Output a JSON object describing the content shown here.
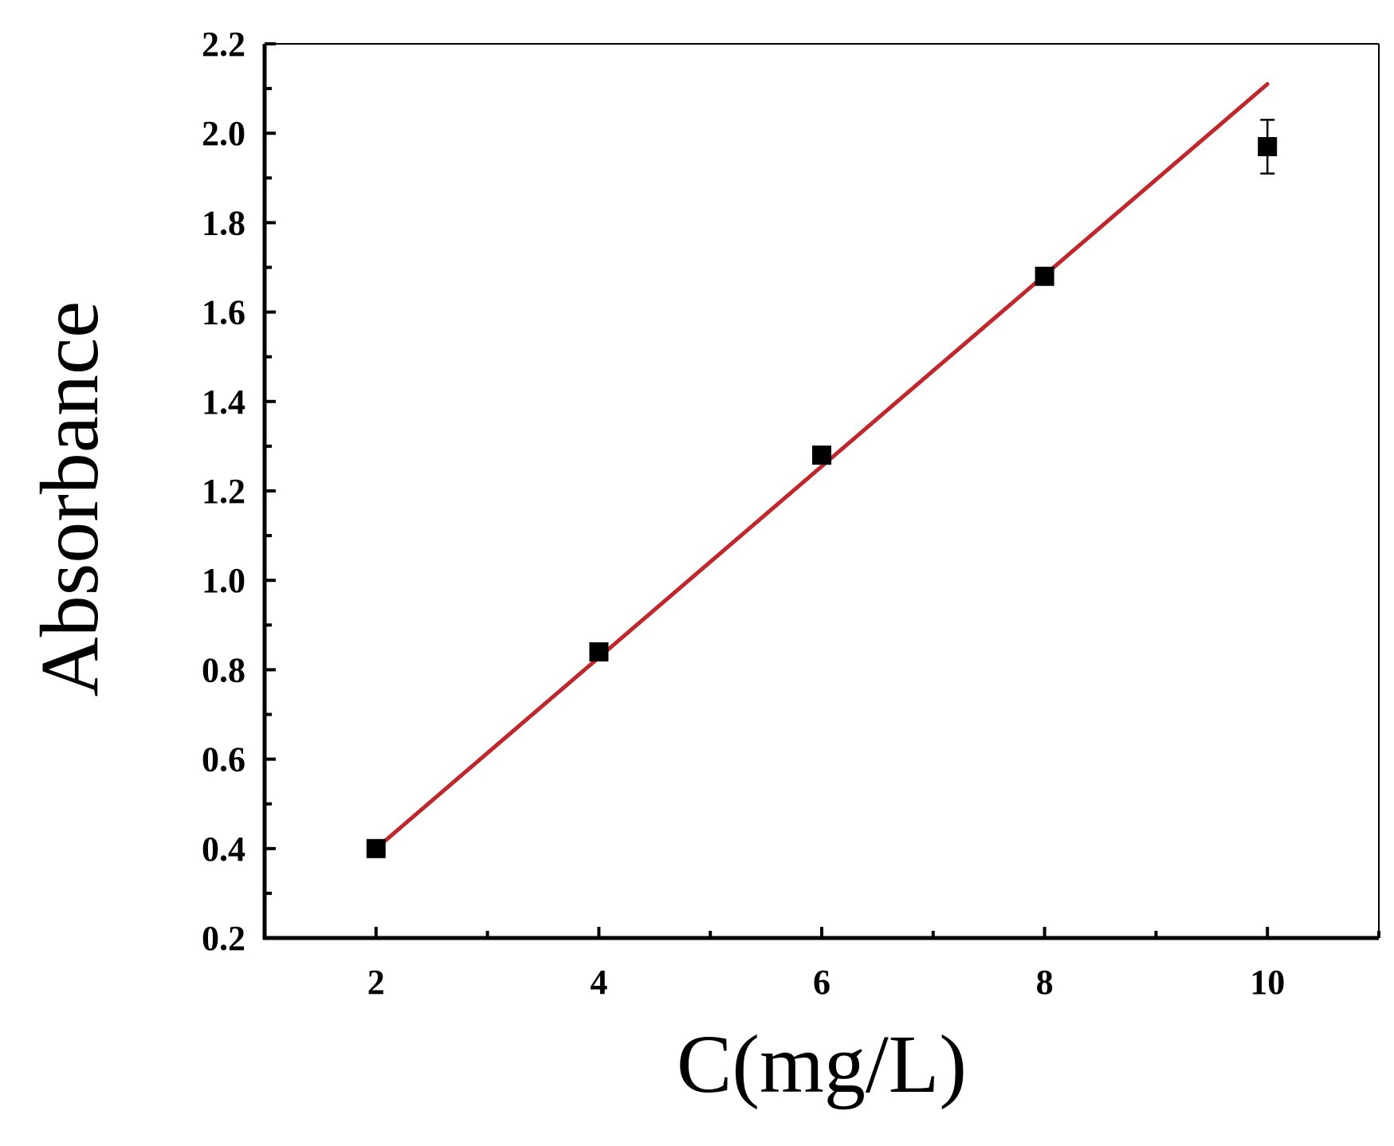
{
  "chart_data": {
    "type": "scatter",
    "title": "",
    "xlabel": "C(mg/L)",
    "ylabel": "Absorbance",
    "xlim": [
      1,
      11
    ],
    "ylim": [
      0.2,
      2.2
    ],
    "x_ticks": [
      "2",
      "4",
      "6",
      "8",
      "10"
    ],
    "y_ticks": [
      "0.2",
      "0.4",
      "0.6",
      "0.8",
      "1.0",
      "1.2",
      "1.4",
      "1.6",
      "1.8",
      "2.0",
      "2.2"
    ],
    "grid": false,
    "legend": "none",
    "series": [
      {
        "marker": "square",
        "color": "#000000",
        "x": [
          2,
          4,
          6,
          8,
          10
        ],
        "y": [
          0.4,
          0.84,
          1.28,
          1.68,
          1.97
        ],
        "error": [
          0.01,
          0.01,
          0.01,
          0.01,
          0.06
        ]
      }
    ],
    "fit_line": {
      "type": "linear",
      "color": "#c0272d",
      "x": [
        2,
        10
      ],
      "y": [
        0.4,
        2.11
      ]
    }
  }
}
